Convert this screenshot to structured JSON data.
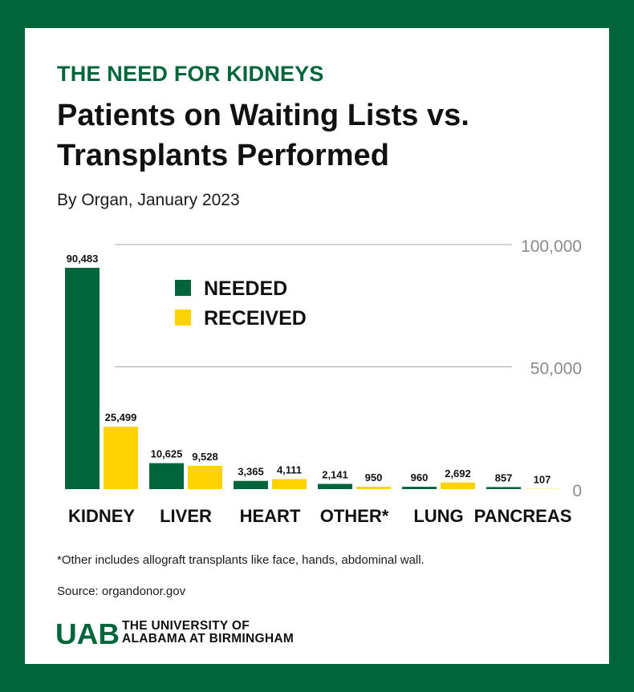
{
  "header": {
    "kicker": "THE NEED FOR KIDNEYS",
    "title": "Patients on Waiting Lists vs. Transplants Performed",
    "subtitle": "By Organ, January 2023"
  },
  "chart_data": {
    "type": "bar",
    "categories": [
      "KIDNEY",
      "LIVER",
      "HEART",
      "OTHER*",
      "LUNG",
      "PANCREAS"
    ],
    "series": [
      {
        "name": "NEEDED",
        "color": "#00653a",
        "values": [
          90483,
          10625,
          3365,
          2141,
          960,
          857
        ]
      },
      {
        "name": "RECEIVED",
        "color": "#ffd200",
        "values": [
          25499,
          9528,
          4111,
          950,
          2692,
          107
        ]
      }
    ],
    "data_labels": [
      [
        "90,483",
        "10,625",
        "3,365",
        "2,141",
        "960",
        "857"
      ],
      [
        "25,499",
        "9,528",
        "4,111",
        "950",
        "2,692",
        "107"
      ]
    ],
    "y_ticks": [
      0,
      50000,
      100000
    ],
    "y_tick_labels": [
      "0",
      "50,000",
      "100,000"
    ],
    "ylim": [
      0,
      100000
    ],
    "grid": true,
    "legend_position": "top-left"
  },
  "footer": {
    "footnote": "*Other includes allograft transplants like face, hands, abdominal wall.",
    "source": "Source: organdonor.gov",
    "logo_text": "UAB",
    "university_line1": "THE UNIVERSITY OF",
    "university_line2": "ALABAMA AT BIRMINGHAM"
  }
}
